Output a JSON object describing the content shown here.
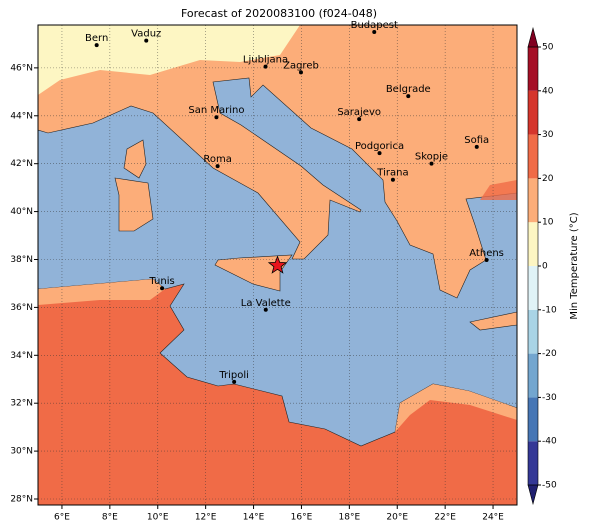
{
  "map": {
    "title": "Forecast of 2020083100 (f024-048)",
    "xlim": [
      5,
      25
    ],
    "ylim": [
      27.75,
      47.79
    ],
    "xticks": [
      {
        "value": 6,
        "label": "6°E"
      },
      {
        "value": 8,
        "label": "8°E"
      },
      {
        "value": 10,
        "label": "10°E"
      },
      {
        "value": 12,
        "label": "12°E"
      },
      {
        "value": 14,
        "label": "14°E"
      },
      {
        "value": 16,
        "label": "16°E"
      },
      {
        "value": 18,
        "label": "18°E"
      },
      {
        "value": 20,
        "label": "20°E"
      },
      {
        "value": 22,
        "label": "22°E"
      },
      {
        "value": 24,
        "label": "24°E"
      }
    ],
    "yticks": [
      {
        "value": 28,
        "label": "28°N"
      },
      {
        "value": 30,
        "label": "30°N"
      },
      {
        "value": 32,
        "label": "32°N"
      },
      {
        "value": 34,
        "label": "34°N"
      },
      {
        "value": 36,
        "label": "36°N"
      },
      {
        "value": 38,
        "label": "38°N"
      },
      {
        "value": 40,
        "label": "40°N"
      },
      {
        "value": 42,
        "label": "42°N"
      },
      {
        "value": 44,
        "label": "44°N"
      },
      {
        "value": 46,
        "label": "46°N"
      }
    ],
    "grid": true,
    "cities": [
      {
        "name": "Bern",
        "lon": 7.45,
        "lat": 46.95
      },
      {
        "name": "Vaduz",
        "lon": 9.52,
        "lat": 47.14
      },
      {
        "name": "Budapest",
        "lon": 19.04,
        "lat": 47.5
      },
      {
        "name": "Ljubljana",
        "lon": 14.5,
        "lat": 46.05
      },
      {
        "name": "Zagreb",
        "lon": 15.98,
        "lat": 45.81
      },
      {
        "name": "Belgrade",
        "lon": 20.46,
        "lat": 44.82
      },
      {
        "name": "San Marino",
        "lon": 12.45,
        "lat": 43.94
      },
      {
        "name": "Sarajevo",
        "lon": 18.41,
        "lat": 43.86
      },
      {
        "name": "Sofia",
        "lon": 23.32,
        "lat": 42.7
      },
      {
        "name": "Podgorica",
        "lon": 19.26,
        "lat": 42.44
      },
      {
        "name": "Skopje",
        "lon": 21.43,
        "lat": 42.0
      },
      {
        "name": "Roma",
        "lon": 12.5,
        "lat": 41.9
      },
      {
        "name": "Tirana",
        "lon": 19.82,
        "lat": 41.33
      },
      {
        "name": "Athens",
        "lon": 23.73,
        "lat": 37.98
      },
      {
        "name": "Tunis",
        "lon": 10.18,
        "lat": 36.8
      },
      {
        "name": "La Valette",
        "lon": 14.51,
        "lat": 35.9
      },
      {
        "name": "Tripoli",
        "lon": 13.19,
        "lat": 32.89
      }
    ],
    "marker": {
      "lon": 15.0,
      "lat": 37.75,
      "color": "#e8141c"
    },
    "colorbar": {
      "label": "Min Temperature (°C)",
      "lim": [
        -50,
        50
      ],
      "ticks": [
        -50,
        -40,
        -30,
        -20,
        -10,
        0,
        10,
        20,
        30,
        40,
        50
      ],
      "colors": [
        "#343896",
        "#4676b5",
        "#73a6cf",
        "#a9d4e6",
        "#e0f3f7",
        "#fdf6c3",
        "#fcad79",
        "#f06b47",
        "#d5352c",
        "#a50f26"
      ],
      "under": "#202070",
      "over": "#800020"
    }
  }
}
